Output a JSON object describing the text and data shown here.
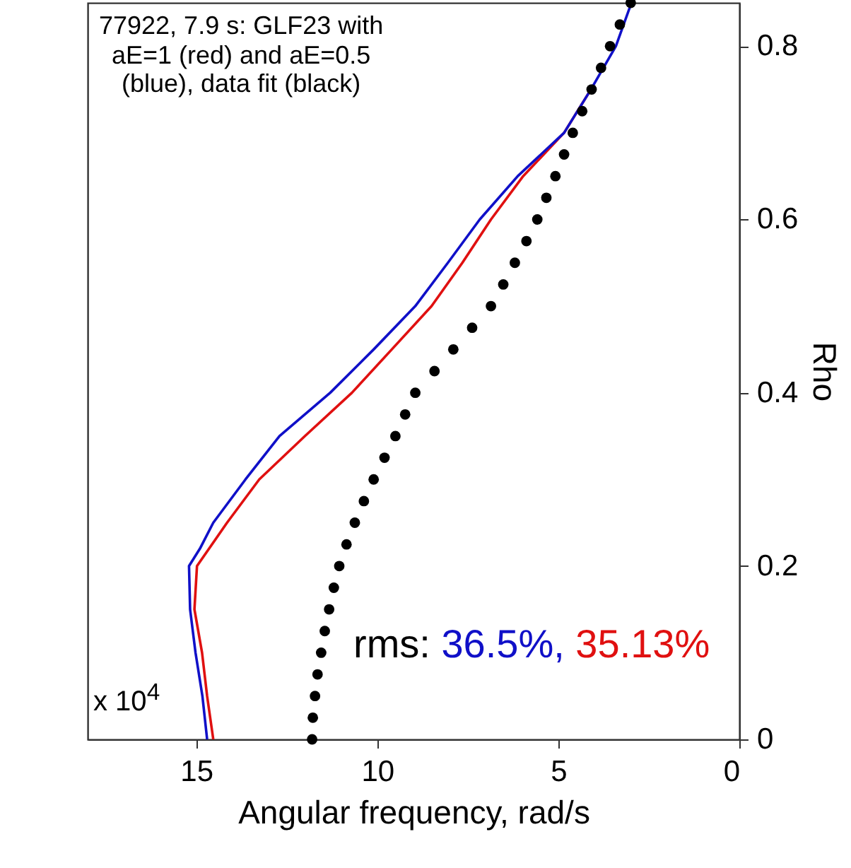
{
  "chart_data": {
    "type": "line",
    "orientation": "horizontal",
    "title": "77922, 7.9 s: GLF23 with\naE=1 (red) and aE=0.5\n(blue), data fit (black)",
    "xlabel": "Angular frequency, rad/s",
    "ylabel": "Rho",
    "annotations": [
      "x 10$^{4}$",
      "rms:",
      "36.5%,",
      "35.13%"
    ],
    "xlim": [
      18,
      0
    ],
    "xticks": [
      15,
      10,
      5,
      0
    ],
    "ylim": [
      0,
      0.85
    ],
    "yticks": [
      0,
      0.2,
      0.4,
      0.6,
      0.8
    ],
    "grid": false,
    "series": [
      {
        "type": "line",
        "color": "#e01010",
        "x": [
          0,
          0.05,
          0.1,
          0.15,
          0.2,
          0.25,
          0.3,
          0.35,
          0.4,
          0.45,
          0.5,
          0.55,
          0.6,
          0.65,
          0.7,
          0.75
        ],
        "values": [
          14.53,
          14.7,
          14.84,
          15.05,
          14.98,
          14.15,
          13.26,
          12.0,
          10.7,
          9.6,
          8.5,
          7.65,
          6.86,
          5.97,
          4.84,
          4.1
        ]
      },
      {
        "type": "line",
        "color": "#1010c8",
        "x": [
          0,
          0.05,
          0.1,
          0.15,
          0.2,
          0.22,
          0.25,
          0.3,
          0.35,
          0.4,
          0.45,
          0.5,
          0.55,
          0.6,
          0.65,
          0.7,
          0.75,
          0.8,
          0.85
        ],
        "values": [
          14.7,
          14.83,
          15.02,
          15.17,
          15.2,
          14.9,
          14.53,
          13.64,
          12.7,
          11.3,
          10.1,
          8.95,
          8.05,
          7.17,
          6.12,
          4.84,
          4.1,
          3.41,
          2.98
        ]
      },
      {
        "type": "scatter",
        "color": "#000000",
        "marker": "circle",
        "x": [
          0,
          0.025,
          0.05,
          0.075,
          0.1,
          0.125,
          0.15,
          0.175,
          0.2,
          0.225,
          0.25,
          0.275,
          0.3,
          0.325,
          0.35,
          0.375,
          0.4,
          0.425,
          0.45,
          0.475,
          0.5,
          0.525,
          0.55,
          0.575,
          0.6,
          0.625,
          0.65,
          0.675,
          0.7,
          0.725,
          0.75,
          0.775,
          0.8,
          0.825,
          0.85
        ],
        "values": [
          11.8,
          11.78,
          11.72,
          11.65,
          11.55,
          11.45,
          11.33,
          11.2,
          11.05,
          10.85,
          10.62,
          10.37,
          10.1,
          9.8,
          9.5,
          9.23,
          8.95,
          8.42,
          7.9,
          7.38,
          6.86,
          6.52,
          6.2,
          5.88,
          5.58,
          5.33,
          5.08,
          4.84,
          4.6,
          4.34,
          4.08,
          3.82,
          3.57,
          3.3,
          3.0
        ]
      }
    ]
  }
}
